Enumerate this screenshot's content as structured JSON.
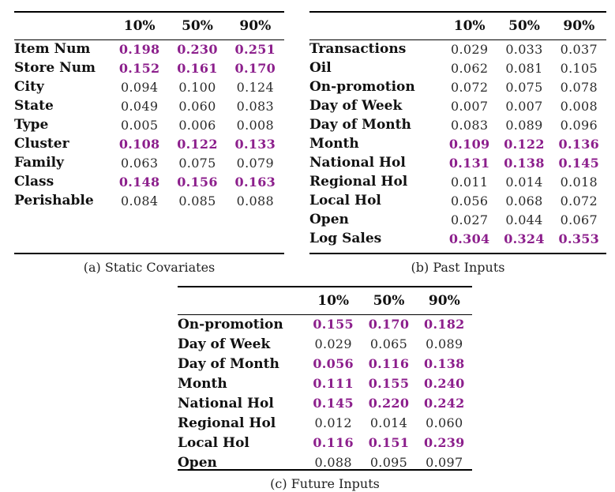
{
  "figure": {
    "accent_color": "#8C1F8C",
    "text_color": "#111111",
    "tables": [
      {
        "caption": "(a) Static Covariates",
        "columns": [
          "10%",
          "50%",
          "90%"
        ],
        "rows": [
          {
            "label": "Item Num",
            "values": [
              "0.198",
              "0.230",
              "0.251"
            ],
            "highlight": true
          },
          {
            "label": "Store Num",
            "values": [
              "0.152",
              "0.161",
              "0.170"
            ],
            "highlight": true
          },
          {
            "label": "City",
            "values": [
              "0.094",
              "0.100",
              "0.124"
            ],
            "highlight": false
          },
          {
            "label": "State",
            "values": [
              "0.049",
              "0.060",
              "0.083"
            ],
            "highlight": false
          },
          {
            "label": "Type",
            "values": [
              "0.005",
              "0.006",
              "0.008"
            ],
            "highlight": false
          },
          {
            "label": "Cluster",
            "values": [
              "0.108",
              "0.122",
              "0.133"
            ],
            "highlight": true
          },
          {
            "label": "Family",
            "values": [
              "0.063",
              "0.075",
              "0.079"
            ],
            "highlight": false
          },
          {
            "label": "Class",
            "values": [
              "0.148",
              "0.156",
              "0.163"
            ],
            "highlight": true
          },
          {
            "label": "Perishable",
            "values": [
              "0.084",
              "0.085",
              "0.088"
            ],
            "highlight": false
          }
        ]
      },
      {
        "caption": "(b) Past Inputs",
        "columns": [
          "10%",
          "50%",
          "90%"
        ],
        "rows": [
          {
            "label": "Transactions",
            "values": [
              "0.029",
              "0.033",
              "0.037"
            ],
            "highlight": false
          },
          {
            "label": "Oil",
            "values": [
              "0.062",
              "0.081",
              "0.105"
            ],
            "highlight": false
          },
          {
            "label": "On-promotion",
            "values": [
              "0.072",
              "0.075",
              "0.078"
            ],
            "highlight": false
          },
          {
            "label": "Day of Week",
            "values": [
              "0.007",
              "0.007",
              "0.008"
            ],
            "highlight": false
          },
          {
            "label": "Day of Month",
            "values": [
              "0.083",
              "0.089",
              "0.096"
            ],
            "highlight": false
          },
          {
            "label": "Month",
            "values": [
              "0.109",
              "0.122",
              "0.136"
            ],
            "highlight": true
          },
          {
            "label": "National Hol",
            "values": [
              "0.131",
              "0.138",
              "0.145"
            ],
            "highlight": true
          },
          {
            "label": "Regional Hol",
            "values": [
              "0.011",
              "0.014",
              "0.018"
            ],
            "highlight": false
          },
          {
            "label": "Local Hol",
            "values": [
              "0.056",
              "0.068",
              "0.072"
            ],
            "highlight": false
          },
          {
            "label": "Open",
            "values": [
              "0.027",
              "0.044",
              "0.067"
            ],
            "highlight": false
          },
          {
            "label": "Log Sales",
            "values": [
              "0.304",
              "0.324",
              "0.353"
            ],
            "highlight": true
          }
        ]
      },
      {
        "caption": "(c) Future Inputs",
        "columns": [
          "10%",
          "50%",
          "90%"
        ],
        "rows": [
          {
            "label": "On-promotion",
            "values": [
              "0.155",
              "0.170",
              "0.182"
            ],
            "highlight": true
          },
          {
            "label": "Day of Week",
            "values": [
              "0.029",
              "0.065",
              "0.089"
            ],
            "highlight": false
          },
          {
            "label": "Day of Month",
            "values": [
              "0.056",
              "0.116",
              "0.138"
            ],
            "highlight": true
          },
          {
            "label": "Month",
            "values": [
              "0.111",
              "0.155",
              "0.240"
            ],
            "highlight": true
          },
          {
            "label": "National Hol",
            "values": [
              "0.145",
              "0.220",
              "0.242"
            ],
            "highlight": true
          },
          {
            "label": "Regional Hol",
            "values": [
              "0.012",
              "0.014",
              "0.060"
            ],
            "highlight": false
          },
          {
            "label": "Local Hol",
            "values": [
              "0.116",
              "0.151",
              "0.239"
            ],
            "highlight": true
          },
          {
            "label": "Open",
            "values": [
              "0.088",
              "0.095",
              "0.097"
            ],
            "highlight": false
          }
        ]
      }
    ]
  }
}
